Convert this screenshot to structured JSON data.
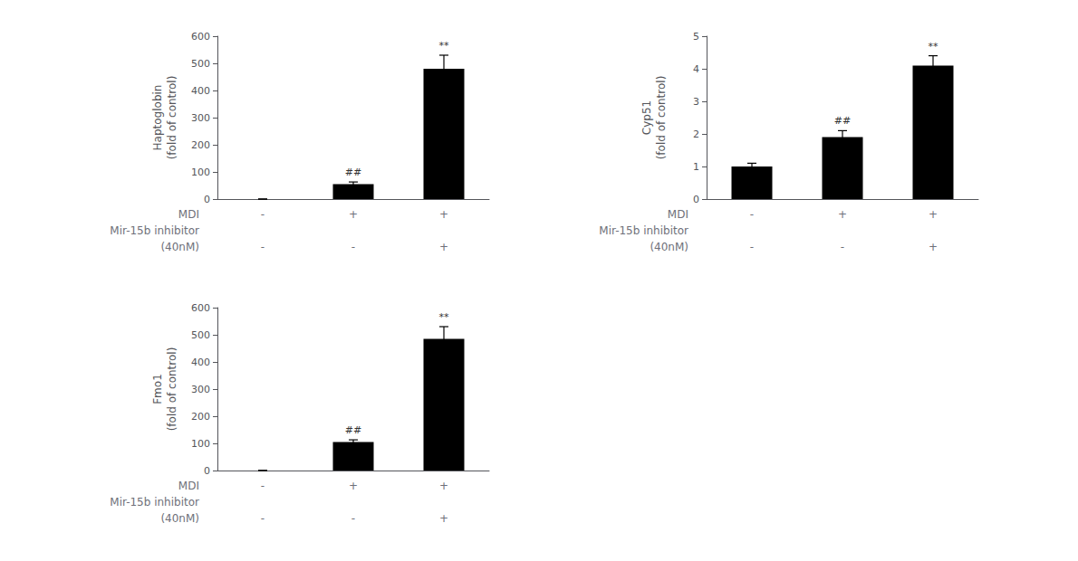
{
  "chart_data": [
    {
      "type": "bar",
      "ylabel": "Haptoglobin\n(fold of control)",
      "ylim": [
        0,
        600
      ],
      "yticks": [
        0,
        100,
        200,
        300,
        400,
        500,
        600
      ],
      "values": [
        0,
        55,
        480
      ],
      "errors": [
        0,
        8,
        50
      ],
      "annotations": [
        null,
        "##",
        "**"
      ],
      "row_labels": [
        "MDI",
        "Mir-15b inhibitor",
        "(40nM)"
      ],
      "mdi": [
        "-",
        "+",
        "+"
      ],
      "inhibitor": [
        "-",
        "-",
        "+"
      ],
      "color": "#000000",
      "grid": false
    },
    {
      "type": "bar",
      "ylabel": "Cyp51\n(fold of control)",
      "ylim": [
        0,
        5
      ],
      "yticks": [
        0,
        1,
        2,
        3,
        4,
        5
      ],
      "values": [
        1.0,
        1.9,
        4.1
      ],
      "errors": [
        0.1,
        0.2,
        0.3
      ],
      "annotations": [
        null,
        "##",
        "**"
      ],
      "row_labels": [
        "MDI",
        "Mir-15b inhibitor",
        "(40nM)"
      ],
      "mdi": [
        "-",
        "+",
        "+"
      ],
      "inhibitor": [
        "-",
        "-",
        "+"
      ],
      "color": "#000000",
      "grid": false
    },
    {
      "type": "bar",
      "ylabel": "Fmo1\n(fold of control)",
      "ylim": [
        0,
        600
      ],
      "yticks": [
        0,
        100,
        200,
        300,
        400,
        500,
        600
      ],
      "values": [
        0,
        105,
        485
      ],
      "errors": [
        0,
        8,
        45
      ],
      "annotations": [
        null,
        "##",
        "**"
      ],
      "row_labels": [
        "MDI",
        "Mir-15b inhibitor",
        "(40nM)"
      ],
      "mdi": [
        "-",
        "+",
        "+"
      ],
      "inhibitor": [
        "-",
        "-",
        "+"
      ],
      "color": "#000000",
      "grid": false
    }
  ]
}
